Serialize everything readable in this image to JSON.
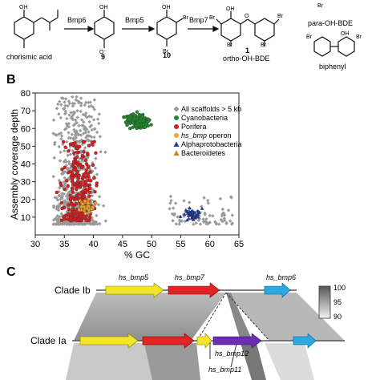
{
  "panelA": {
    "reagents": [
      "Bmp6",
      "Bmp5",
      "Bmp7"
    ],
    "compounds": {
      "chorismic": "chorismic acid",
      "c9": "9",
      "c10": "10",
      "c1": "1",
      "orthoName": "ortho-OH-BDE",
      "paraName": "para-OH-BDE",
      "biphenyl": "biphenyl"
    },
    "atoms": {
      "OH": "OH",
      "Br": "Br",
      "O": "O",
      "Ominus": "O⁻"
    }
  },
  "panelB": {
    "letter": "B",
    "chart_data": {
      "type": "scatter",
      "xlabel": "% GC",
      "ylabel": "Assembly coverage depth",
      "xlim": [
        30,
        65
      ],
      "ylim": [
        0,
        80
      ],
      "xticks": [
        "30",
        "35",
        "40",
        "45",
        "50",
        "55",
        "60",
        "65"
      ],
      "yticks": [
        "10",
        "20",
        "30",
        "40",
        "50",
        "60",
        "70",
        "80"
      ],
      "legend": [
        {
          "name": "All scaffolds > 5 kb",
          "color": "#9a9a9a",
          "marker": "diamond"
        },
        {
          "name": "Cyanobacteria",
          "color": "#1f8a2a",
          "marker": "circle"
        },
        {
          "name": "Porifera",
          "color": "#d61f1f",
          "marker": "circle"
        },
        {
          "name": "hs_bmp operon",
          "color": "#f0a830",
          "marker": "circle"
        },
        {
          "name": "Alphaprotobacteria",
          "color": "#1f3fa8",
          "marker": "triangle"
        },
        {
          "name": "Bacteroidetes",
          "color": "#e07a1f",
          "marker": "triangle"
        }
      ],
      "legend_position": "top-right",
      "clusters": [
        {
          "series": "All scaffolds > 5 kb",
          "n": 700,
          "gc_range": [
            33,
            49
          ],
          "depth_range": [
            6,
            78
          ]
        },
        {
          "series": "All scaffolds > 5 kb",
          "n": 80,
          "gc_range": [
            53,
            64
          ],
          "depth_range": [
            6,
            22
          ]
        },
        {
          "series": "Cyanobacteria",
          "n": 140,
          "gc_center": 47.5,
          "depth_center": 64
        },
        {
          "series": "Porifera",
          "n": 260,
          "gc_center": 37.5,
          "depth_center": 22
        },
        {
          "series": "hs_bmp operon",
          "n": 40,
          "gc_center": 39,
          "depth_center": 16
        },
        {
          "series": "Alphaprotobacteria",
          "n": 45,
          "gc_center": 57,
          "depth_center": 12
        }
      ]
    }
  },
  "panelC": {
    "letter": "C",
    "cladeTop": "Clade Ib",
    "cladeBottom": "Clade Ia",
    "genes": {
      "bmp5": "hs_bmp5",
      "bmp7": "hs_bmp7",
      "bmp6": "hs_bmp6",
      "bmp12": "hs_bmp12",
      "bmp11": "hs_bmp11"
    },
    "scale": {
      "max": "100",
      "mid": "95",
      "min": "90"
    }
  }
}
